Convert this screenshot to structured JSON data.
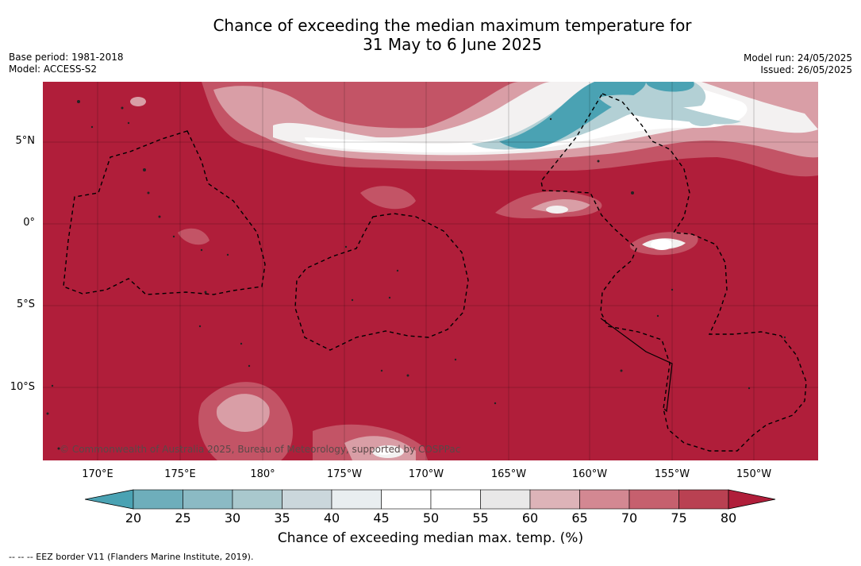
{
  "title_line1": "Chance of exceeding the median maximum temperature for",
  "title_line2": "31 May to 6 June 2025",
  "base_period": "Base period: 1981-2018",
  "model": "Model: ACCESS-S2",
  "model_run": "Model run: 24/05/2025",
  "issued": "Issued: 26/05/2025",
  "lat_labels": [
    "5°N",
    "0°",
    "5°S",
    "10°S"
  ],
  "lon_labels": [
    "170°E",
    "175°E",
    "180°",
    "175°W",
    "170°W",
    "165°W",
    "160°W",
    "155°W",
    "150°W"
  ],
  "copyright": "© Commonwealth of Australia 2025, Bureau of Meteorology, supported by COSPPac",
  "colorbar": {
    "ticks": [
      "20",
      "25",
      "30",
      "35",
      "40",
      "45",
      "50",
      "55",
      "60",
      "65",
      "70",
      "75",
      "80"
    ],
    "colors": [
      "#4aa2b3",
      "#6eaebb",
      "#8bbac4",
      "#a9c8cd",
      "#cbd7dc",
      "#e9eef0",
      "#ffffff",
      "#ffffff",
      "#e9e8e8",
      "#ddb3b8",
      "#d38892",
      "#c6606e",
      "#b94152",
      "#b01e3a"
    ],
    "title": "Chance of exceeding median max. temp. (%)"
  },
  "footnote": "--  --  -- EEZ border V11 (Flanders Marine Institute, 2019).",
  "map_colors": {
    "ocean_high": "#b01e3a",
    "band_75": "#c35466",
    "band_65": "#d99ea6",
    "band_55": "#f3f1f1",
    "band_45": "#ffffff",
    "band_35": "#b3d0d5",
    "band_25": "#4aa2b3"
  }
}
